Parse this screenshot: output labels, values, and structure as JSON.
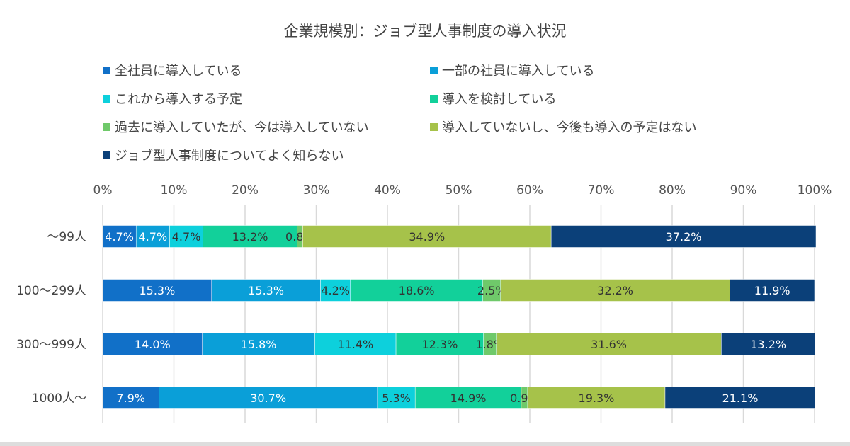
{
  "chart_data": {
    "type": "bar",
    "orientation": "horizontal",
    "stacked": "percent",
    "title": "企業規模別：ジョブ型人事制度の導入状況",
    "categories": [
      "〜99人",
      "100〜299人",
      "300〜999人",
      "1000人〜"
    ],
    "xlim": [
      0,
      100
    ],
    "x_ticks": [
      "0%",
      "10%",
      "20%",
      "30%",
      "40%",
      "50%",
      "60%",
      "70%",
      "80%",
      "90%",
      "100%"
    ],
    "x_axis_position": "top",
    "grid": "vertical",
    "legend_position": "top",
    "series": [
      {
        "name": "全社員に導入している",
        "color": "#1170c8",
        "label_color": "#ffffff",
        "values": [
          4.7,
          15.3,
          14.0,
          7.9
        ]
      },
      {
        "name": "一部の社員に導入している",
        "color": "#0a9fd8",
        "label_color": "#ffffff",
        "values": [
          4.7,
          15.3,
          15.8,
          30.7
        ]
      },
      {
        "name": "これから導入する予定",
        "color": "#0dd0dc",
        "label_color": "#333333",
        "values": [
          4.7,
          4.2,
          11.4,
          5.3
        ]
      },
      {
        "name": "導入を検討している",
        "color": "#12d09a",
        "label_color": "#333333",
        "values": [
          13.2,
          18.6,
          12.3,
          14.9
        ]
      },
      {
        "name": "過去に導入していたが、今は導入していない",
        "color": "#6fc96a",
        "label_color": "#333333",
        "values": [
          0.8,
          2.5,
          1.8,
          0.9
        ]
      },
      {
        "name": "導入していないし、今後も導入の予定はない",
        "color": "#a6c24a",
        "label_color": "#333333",
        "values": [
          34.9,
          32.2,
          31.6,
          19.3
        ]
      },
      {
        "name": "ジョブ型人事制度についてよく知らない",
        "color": "#0b4079",
        "label_color": "#ffffff",
        "values": [
          37.2,
          11.9,
          13.2,
          21.1
        ]
      }
    ]
  }
}
